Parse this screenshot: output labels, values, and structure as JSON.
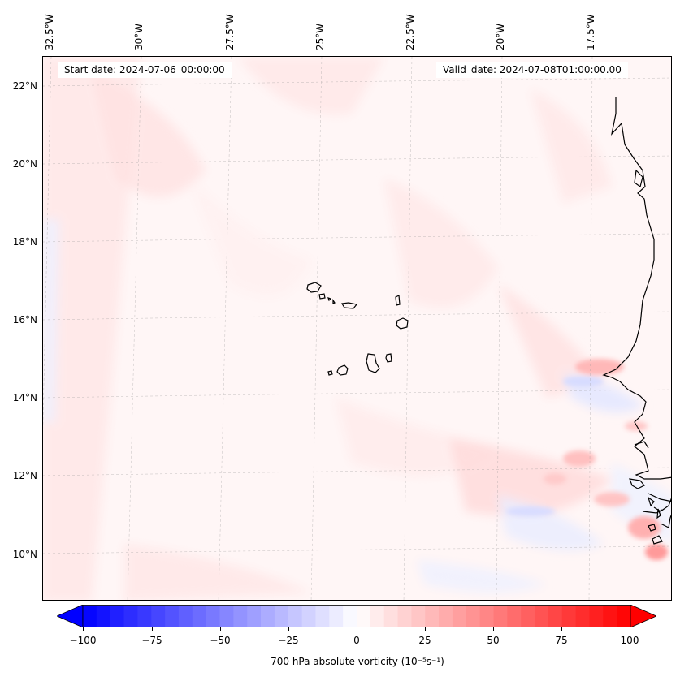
{
  "map": {
    "start_date": "Start date: 2024-07-06_00:00:00",
    "valid_date": "Valid_date: 2024-07-08T01:00:00.00",
    "lon_labels": [
      "32.5°W",
      "30°W",
      "27.5°W",
      "25°W",
      "22.5°W",
      "20°W",
      "17.5°W"
    ],
    "lat_labels": [
      "22°N",
      "20°N",
      "18°N",
      "16°N",
      "14°N",
      "12°N",
      "10°N"
    ],
    "variable": "700 hPa absolute vorticity",
    "units": "(10⁻⁵s⁻¹)",
    "colors": {
      "negative": "#0000ff",
      "zero": "#ffffff",
      "positive": "#ff0000"
    }
  },
  "colorbar": {
    "ticks": [
      "−100",
      "−75",
      "−50",
      "−25",
      "0",
      "25",
      "50",
      "75",
      "100"
    ],
    "min": -100,
    "max": 100,
    "levels": 41,
    "extend": "both"
  }
}
